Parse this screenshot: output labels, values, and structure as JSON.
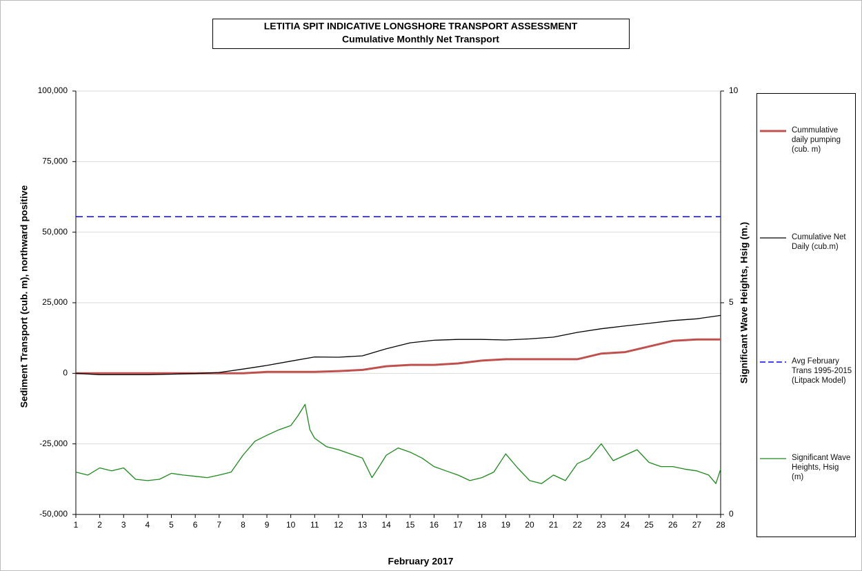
{
  "chart_data": {
    "type": "line",
    "title": "LETITIA SPIT INDICATIVE LONGSHORE TRANSPORT ASSESSMENT",
    "subtitle": "Cumulative Monthly Net Transport",
    "x_label": "February 2017",
    "y_label": "Sediment  Transport  (cub. m), northward positive",
    "y2_label": "Significant  Wave Heights, Hsig (m.)",
    "x": [
      1,
      2,
      3,
      4,
      5,
      6,
      7,
      8,
      9,
      10,
      11,
      12,
      13,
      14,
      15,
      16,
      17,
      18,
      19,
      20,
      21,
      22,
      23,
      24,
      25,
      26,
      27,
      28
    ],
    "xlim": [
      1,
      28
    ],
    "xticks": [
      1,
      2,
      3,
      4,
      5,
      6,
      7,
      8,
      9,
      10,
      11,
      12,
      13,
      14,
      15,
      16,
      17,
      18,
      19,
      20,
      21,
      22,
      23,
      24,
      25,
      26,
      27,
      28
    ],
    "ylim": [
      -50000,
      100000
    ],
    "yticks": [
      {
        "value": -50000,
        "label": "-50,000"
      },
      {
        "value": -25000,
        "label": "-25,000"
      },
      0,
      {
        "value": 25000,
        "label": "25,000"
      },
      {
        "value": 50000,
        "label": "50,000"
      },
      {
        "value": 75000,
        "label": "75,000"
      },
      {
        "value": 100000,
        "label": "100,000"
      }
    ],
    "y2lim": [
      0,
      10
    ],
    "y2ticks": [
      0,
      5,
      10
    ],
    "grid": true,
    "legend": "right",
    "series": [
      {
        "name": "Cummulative daily pumping (cub. m)",
        "color": "#c0504d",
        "width": 3,
        "values": [
          0,
          0,
          0,
          0,
          0,
          0,
          0,
          0,
          500,
          500,
          500,
          800,
          1200,
          2500,
          3000,
          3000,
          3500,
          4500,
          5000,
          5000,
          5000,
          5000,
          7000,
          7500,
          9500,
          11500,
          12000,
          12000
        ]
      },
      {
        "name": "Cumulative Net Daily (cub.m)",
        "color": "#000000",
        "width": 1.3,
        "values": [
          0,
          -500,
          -500,
          -500,
          -300,
          -100,
          300,
          1500,
          2800,
          4300,
          5800,
          5700,
          6200,
          8700,
          10800,
          11700,
          12000,
          12000,
          11800,
          12200,
          12800,
          14500,
          15800,
          16800,
          17700,
          18700,
          19300,
          20500
        ]
      },
      {
        "name": "Avg February Trans 1995-2015 (Litpack Model)",
        "color": "#0000ff",
        "width": 1.5,
        "dashed": true,
        "values": [
          55500,
          55500,
          55500,
          55500,
          55500,
          55500,
          55500,
          55500,
          55500,
          55500,
          55500,
          55500,
          55500,
          55500,
          55500,
          55500,
          55500,
          55500,
          55500,
          55500,
          55500,
          55500,
          55500,
          55500,
          55500,
          55500,
          55500,
          55500
        ]
      },
      {
        "name": "Significant Wave Heights, Hsig (m)",
        "color": "#1a8a1a",
        "width": 1.3,
        "axis": "y2",
        "x": [
          1,
          1.5,
          2,
          2.5,
          3,
          3.5,
          4,
          4.5,
          5,
          5.5,
          6,
          6.5,
          7,
          7.5,
          8,
          8.5,
          9,
          9.5,
          10,
          10.3,
          10.6,
          10.8,
          11,
          11.5,
          12,
          12.5,
          13,
          13.4,
          13.7,
          14,
          14.5,
          15,
          15.5,
          16,
          16.5,
          17,
          17.5,
          18,
          18.5,
          19,
          19.5,
          20,
          20.5,
          21,
          21.5,
          22,
          22.5,
          23,
          23.5,
          24,
          24.5,
          25,
          25.5,
          26,
          26.5,
          27,
          27.5,
          27.8,
          28
        ],
        "values": [
          1.0,
          0.93,
          1.1,
          1.03,
          1.1,
          0.83,
          0.8,
          0.83,
          0.97,
          0.93,
          0.9,
          0.87,
          0.93,
          1.0,
          1.4,
          1.73,
          1.87,
          2.0,
          2.1,
          2.33,
          2.6,
          2.0,
          1.8,
          1.6,
          1.53,
          1.43,
          1.33,
          0.87,
          1.13,
          1.4,
          1.57,
          1.47,
          1.33,
          1.13,
          1.03,
          0.93,
          0.8,
          0.87,
          1.0,
          1.43,
          1.1,
          0.8,
          0.73,
          0.93,
          0.8,
          1.2,
          1.33,
          1.67,
          1.27,
          1.4,
          1.53,
          1.23,
          1.13,
          1.13,
          1.07,
          1.03,
          0.93,
          0.73,
          1.07
        ]
      }
    ]
  }
}
